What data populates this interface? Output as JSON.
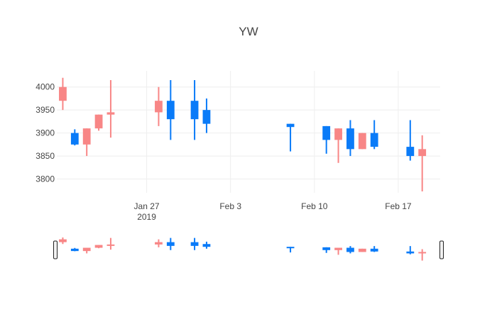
{
  "chart_data": {
    "type": "candlestick",
    "title": "YW",
    "xlabel": "",
    "ylabel": "",
    "ylim": [
      3770,
      4035
    ],
    "xlim": [
      "2019-01-19T12:00",
      "2019-02-20T12:00"
    ],
    "grid": true,
    "legend": "none",
    "rangeslider": true,
    "colors": {
      "increasing": "#F88686",
      "decreasing": "#0A7BF8"
    },
    "y_ticks": [
      3800,
      3850,
      3900,
      3950,
      4000
    ],
    "x_ticks": [
      {
        "date": "2019-01-27",
        "label": "Jan 27",
        "sub": "2019"
      },
      {
        "date": "2019-02-03",
        "label": "Feb 3",
        "sub": ""
      },
      {
        "date": "2019-02-10",
        "label": "Feb 10",
        "sub": ""
      },
      {
        "date": "2019-02-17",
        "label": "Feb 17",
        "sub": ""
      }
    ],
    "candles": [
      {
        "date": "2019-01-20",
        "open": 3970,
        "high": 4020,
        "low": 3950,
        "close": 4000
      },
      {
        "date": "2019-01-21",
        "open": 3900,
        "high": 3908,
        "low": 3873,
        "close": 3875
      },
      {
        "date": "2019-01-22",
        "open": 3875,
        "high": 3910,
        "low": 3850,
        "close": 3910
      },
      {
        "date": "2019-01-23",
        "open": 3910,
        "high": 3940,
        "low": 3905,
        "close": 3940
      },
      {
        "date": "2019-01-24",
        "open": 3940,
        "high": 4015,
        "low": 3890,
        "close": 3945
      },
      {
        "date": "2019-01-28",
        "open": 3945,
        "high": 4000,
        "low": 3915,
        "close": 3970
      },
      {
        "date": "2019-01-29",
        "open": 3970,
        "high": 4015,
        "low": 3885,
        "close": 3930
      },
      {
        "date": "2019-01-31",
        "open": 3970,
        "high": 4015,
        "low": 3885,
        "close": 3930
      },
      {
        "date": "2019-02-01",
        "open": 3950,
        "high": 3975,
        "low": 3900,
        "close": 3920
      },
      {
        "date": "2019-02-08",
        "open": 3920,
        "high": 3920,
        "low": 3860,
        "close": 3913
      },
      {
        "date": "2019-02-11",
        "open": 3915,
        "high": 3915,
        "low": 3855,
        "close": 3885
      },
      {
        "date": "2019-02-12",
        "open": 3885,
        "high": 3910,
        "low": 3835,
        "close": 3910
      },
      {
        "date": "2019-02-13",
        "open": 3910,
        "high": 3928,
        "low": 3850,
        "close": 3865
      },
      {
        "date": "2019-02-14",
        "open": 3865,
        "high": 3900,
        "low": 3865,
        "close": 3900
      },
      {
        "date": "2019-02-15",
        "open": 3900,
        "high": 3928,
        "low": 3865,
        "close": 3870
      },
      {
        "date": "2019-02-18",
        "open": 3870,
        "high": 3928,
        "low": 3840,
        "close": 3850
      },
      {
        "date": "2019-02-19",
        "open": 3850,
        "high": 3895,
        "low": 3773,
        "close": 3865
      }
    ]
  }
}
